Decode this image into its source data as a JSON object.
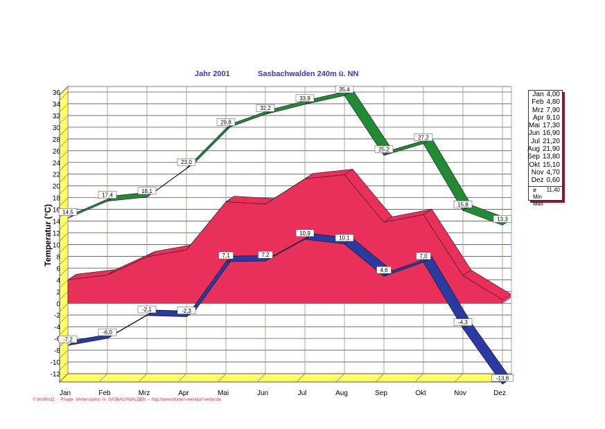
{
  "header": {
    "year": "Jahr  2001",
    "station": "Sasbachwalden  240m ü. NN"
  },
  "chart_data": {
    "type": "area",
    "title": "Jahr 2001   Sasbachwalden 240m ü. NN",
    "xlabel": "",
    "ylabel": "Temperatur  (°C)",
    "categories": [
      "Jan",
      "Feb",
      "Mrz",
      "Apr",
      "Mai",
      "Jun",
      "Jul",
      "Aug",
      "Sep",
      "Okt",
      "Nov",
      "Dez"
    ],
    "ylim": [
      -12,
      36
    ],
    "yticks": [
      -12,
      -10,
      -8,
      -6,
      -4,
      -2,
      0,
      2,
      4,
      6,
      8,
      10,
      12,
      14,
      16,
      18,
      20,
      22,
      24,
      26,
      28,
      30,
      32,
      34,
      36
    ],
    "grid": true,
    "series": [
      {
        "name": "Max",
        "color": "#228a35",
        "values": [
          14.5,
          17.4,
          18.1,
          23.0,
          29.8,
          32.2,
          33.9,
          35.4,
          25.2,
          27.2,
          15.8,
          13.3
        ],
        "labels": [
          "14,5",
          "17,4",
          "18,1",
          "23,0",
          "29,8",
          "32,2",
          "33,9",
          "35,4",
          "25,2",
          "27,2",
          "15,8",
          "13,3"
        ]
      },
      {
        "name": "Mittel",
        "color": "#e8305a",
        "values": [
          4.0,
          4.8,
          7.9,
          9.1,
          17.3,
          16.9,
          21.2,
          21.9,
          13.8,
          15.1,
          4.7,
          0.6
        ]
      },
      {
        "name": "Min",
        "color": "#2a3aa0",
        "values": [
          -7.2,
          -6.0,
          -2.1,
          -2.3,
          7.1,
          7.2,
          10.9,
          10.1,
          4.6,
          7.0,
          -4.3,
          -13.8
        ],
        "labels": [
          "-7,2",
          "-6,0",
          "-2,1",
          "-2,3",
          "7,1",
          "7,2",
          "10,9",
          "10,1",
          "4,6",
          "7,0",
          "-4,3",
          "-13,8"
        ]
      }
    ],
    "legend": {
      "placement": "right",
      "rows": [
        [
          "Jan",
          "4,00"
        ],
        [
          "Feb",
          "4,80"
        ],
        [
          "Mrz",
          "7,90"
        ],
        [
          "Apr",
          "9,10"
        ],
        [
          "Mai",
          "17,30"
        ],
        [
          "Jun",
          "16,90"
        ],
        [
          "Jul",
          "21,20"
        ],
        [
          "Aug",
          "21,90"
        ],
        [
          "Sep",
          "13,80"
        ],
        [
          "Okt",
          "15,10"
        ],
        [
          "Nov",
          "4,70"
        ],
        [
          "Dez",
          "0,60"
        ]
      ],
      "avg_symbol": "ø",
      "avg": "11,40",
      "min_label": "Min",
      "max_label": "Max"
    }
  },
  "footer": "© WsWin32  -  Private  Wetterstation  in  SASBACHWALDEN  -  http://www.blumen-weindorf-wetter.de"
}
